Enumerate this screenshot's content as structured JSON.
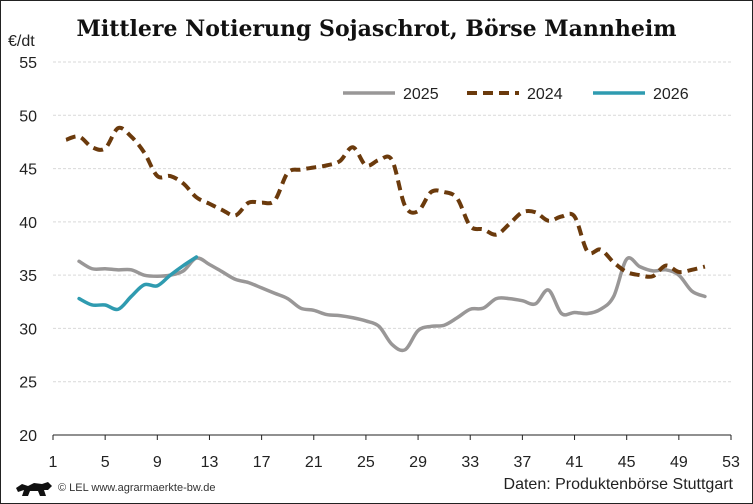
{
  "chart_data": {
    "type": "line",
    "title": "Mittlere Notierung Sojaschrot, Börse Mannheim",
    "ylabel": "€/dt",
    "xlabel": "",
    "xlim": [
      1,
      53
    ],
    "ylim": [
      20,
      55
    ],
    "x_ticks": [
      1,
      5,
      9,
      13,
      17,
      21,
      25,
      29,
      33,
      37,
      41,
      45,
      49,
      53
    ],
    "y_ticks": [
      20,
      25,
      30,
      35,
      40,
      45,
      50,
      55
    ],
    "grid": "horizontal dashed",
    "legend": "top-right",
    "series": [
      {
        "name": "2025",
        "color": "#999797",
        "style": "solid",
        "x_start": 3,
        "values": [
          36.3,
          35.6,
          35.6,
          35.5,
          35.5,
          35.0,
          34.9,
          35.0,
          35.4,
          36.6,
          36.0,
          35.3,
          34.6,
          34.3,
          33.8,
          33.3,
          32.8,
          31.9,
          31.7,
          31.3,
          31.2,
          31.0,
          30.7,
          30.2,
          28.5,
          28.0,
          29.8,
          30.2,
          30.3,
          31.0,
          31.8,
          31.9,
          32.8,
          32.8,
          32.6,
          32.3,
          33.6,
          31.4,
          31.5,
          31.4,
          31.8,
          33.0,
          36.5,
          35.8,
          35.4,
          35.5,
          35.0,
          33.5,
          33.0
        ]
      },
      {
        "name": "2024",
        "color": "#6b3a0c",
        "style": "dashed",
        "x_start": 2,
        "values": [
          47.7,
          48.0,
          47.0,
          46.9,
          48.8,
          48.0,
          46.5,
          44.3,
          44.3,
          43.6,
          42.3,
          41.7,
          41.1,
          40.6,
          41.8,
          41.8,
          42.0,
          44.6,
          44.9,
          45.1,
          45.3,
          45.7,
          47.0,
          45.3,
          45.8,
          45.8,
          41.5,
          41.0,
          42.8,
          42.8,
          42.2,
          39.6,
          39.3,
          38.8,
          39.8,
          40.9,
          40.9,
          40.1,
          40.5,
          40.5,
          37.2,
          37.4,
          36.2,
          35.3,
          35.0,
          34.9,
          35.9,
          35.3,
          35.5,
          35.8
        ]
      },
      {
        "name": "2026",
        "color": "#2f9bb0",
        "style": "solid",
        "x_start": 3,
        "values": [
          32.8,
          32.2,
          32.2,
          31.8,
          33.0,
          34.1,
          34.0,
          35.0,
          35.9,
          36.7
        ]
      }
    ]
  },
  "footer": {
    "copyright": "© LEL www.agrarmaerkte-bw.de",
    "source": "Daten: Produktenbörse Stuttgart"
  }
}
